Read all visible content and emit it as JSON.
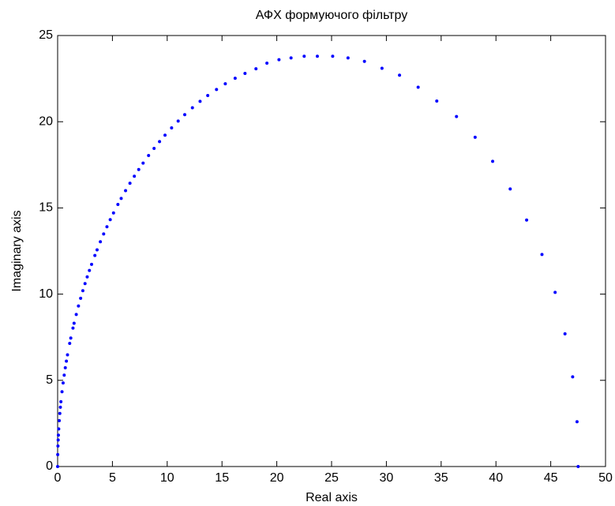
{
  "chart_data": {
    "type": "scatter",
    "title": "АФХ формуючого фільтру",
    "x_label": "Real axis",
    "y_label": "Imaginary axis",
    "color": "#0000ff",
    "x": [
      47.5,
      47.4,
      47.0,
      46.3,
      45.4,
      44.2,
      42.8,
      41.3,
      39.7,
      38.1,
      36.4,
      34.6,
      32.9,
      31.2,
      29.6,
      28.0,
      26.5,
      25.1,
      23.7,
      22.5,
      21.3,
      20.2,
      19.1,
      18.1,
      17.1,
      16.2,
      15.3,
      14.5,
      13.7,
      13.0,
      12.3,
      11.6,
      11.0,
      10.4,
      9.8,
      9.3,
      8.8,
      8.3,
      7.8,
      7.4,
      7.0,
      6.6,
      6.2,
      5.8,
      5.5,
      5.1,
      4.8,
      4.5,
      4.2,
      3.9,
      3.6,
      3.4,
      3.1,
      2.9,
      2.7,
      2.5,
      2.3,
      2.1,
      1.9,
      1.7,
      1.5,
      1.4,
      1.2,
      1.1,
      0.9,
      0.8,
      0.7,
      0.6,
      0.5,
      0.4,
      0.3,
      0.25,
      0.2,
      0.15,
      0.1,
      0.07,
      0.05,
      0.03,
      0.01,
      0
    ],
    "values": [
      0,
      2.6,
      5.2,
      7.7,
      10.1,
      12.3,
      14.3,
      16.1,
      17.7,
      19.1,
      20.3,
      21.2,
      22.0,
      22.7,
      23.1,
      23.5,
      23.7,
      23.8,
      23.8,
      23.8,
      23.7,
      23.6,
      23.4,
      23.07,
      22.8,
      22.52,
      22.2,
      21.87,
      21.52,
      21.18,
      20.81,
      20.41,
      20.04,
      19.64,
      19.22,
      18.85,
      18.45,
      18.04,
      17.6,
      17.23,
      16.84,
      16.43,
      16.0,
      15.55,
      15.2,
      14.71,
      14.32,
      13.91,
      13.49,
      13.04,
      12.57,
      12.24,
      11.73,
      11.37,
      11.0,
      10.61,
      10.2,
      9.76,
      9.31,
      8.82,
      8.31,
      8.03,
      7.45,
      7.14,
      6.48,
      6.11,
      5.73,
      5.3,
      4.85,
      4.34,
      3.76,
      3.44,
      3.08,
      2.66,
      2.18,
      1.82,
      1.54,
      1.19,
      0.69,
      0
    ],
    "xlim": [
      0,
      50
    ],
    "xticks": [
      0,
      5,
      10,
      15,
      20,
      25,
      30,
      35,
      40,
      45,
      50
    ],
    "ylim": [
      0,
      25
    ],
    "yticks": [
      0,
      5,
      10,
      15,
      20,
      25
    ]
  }
}
